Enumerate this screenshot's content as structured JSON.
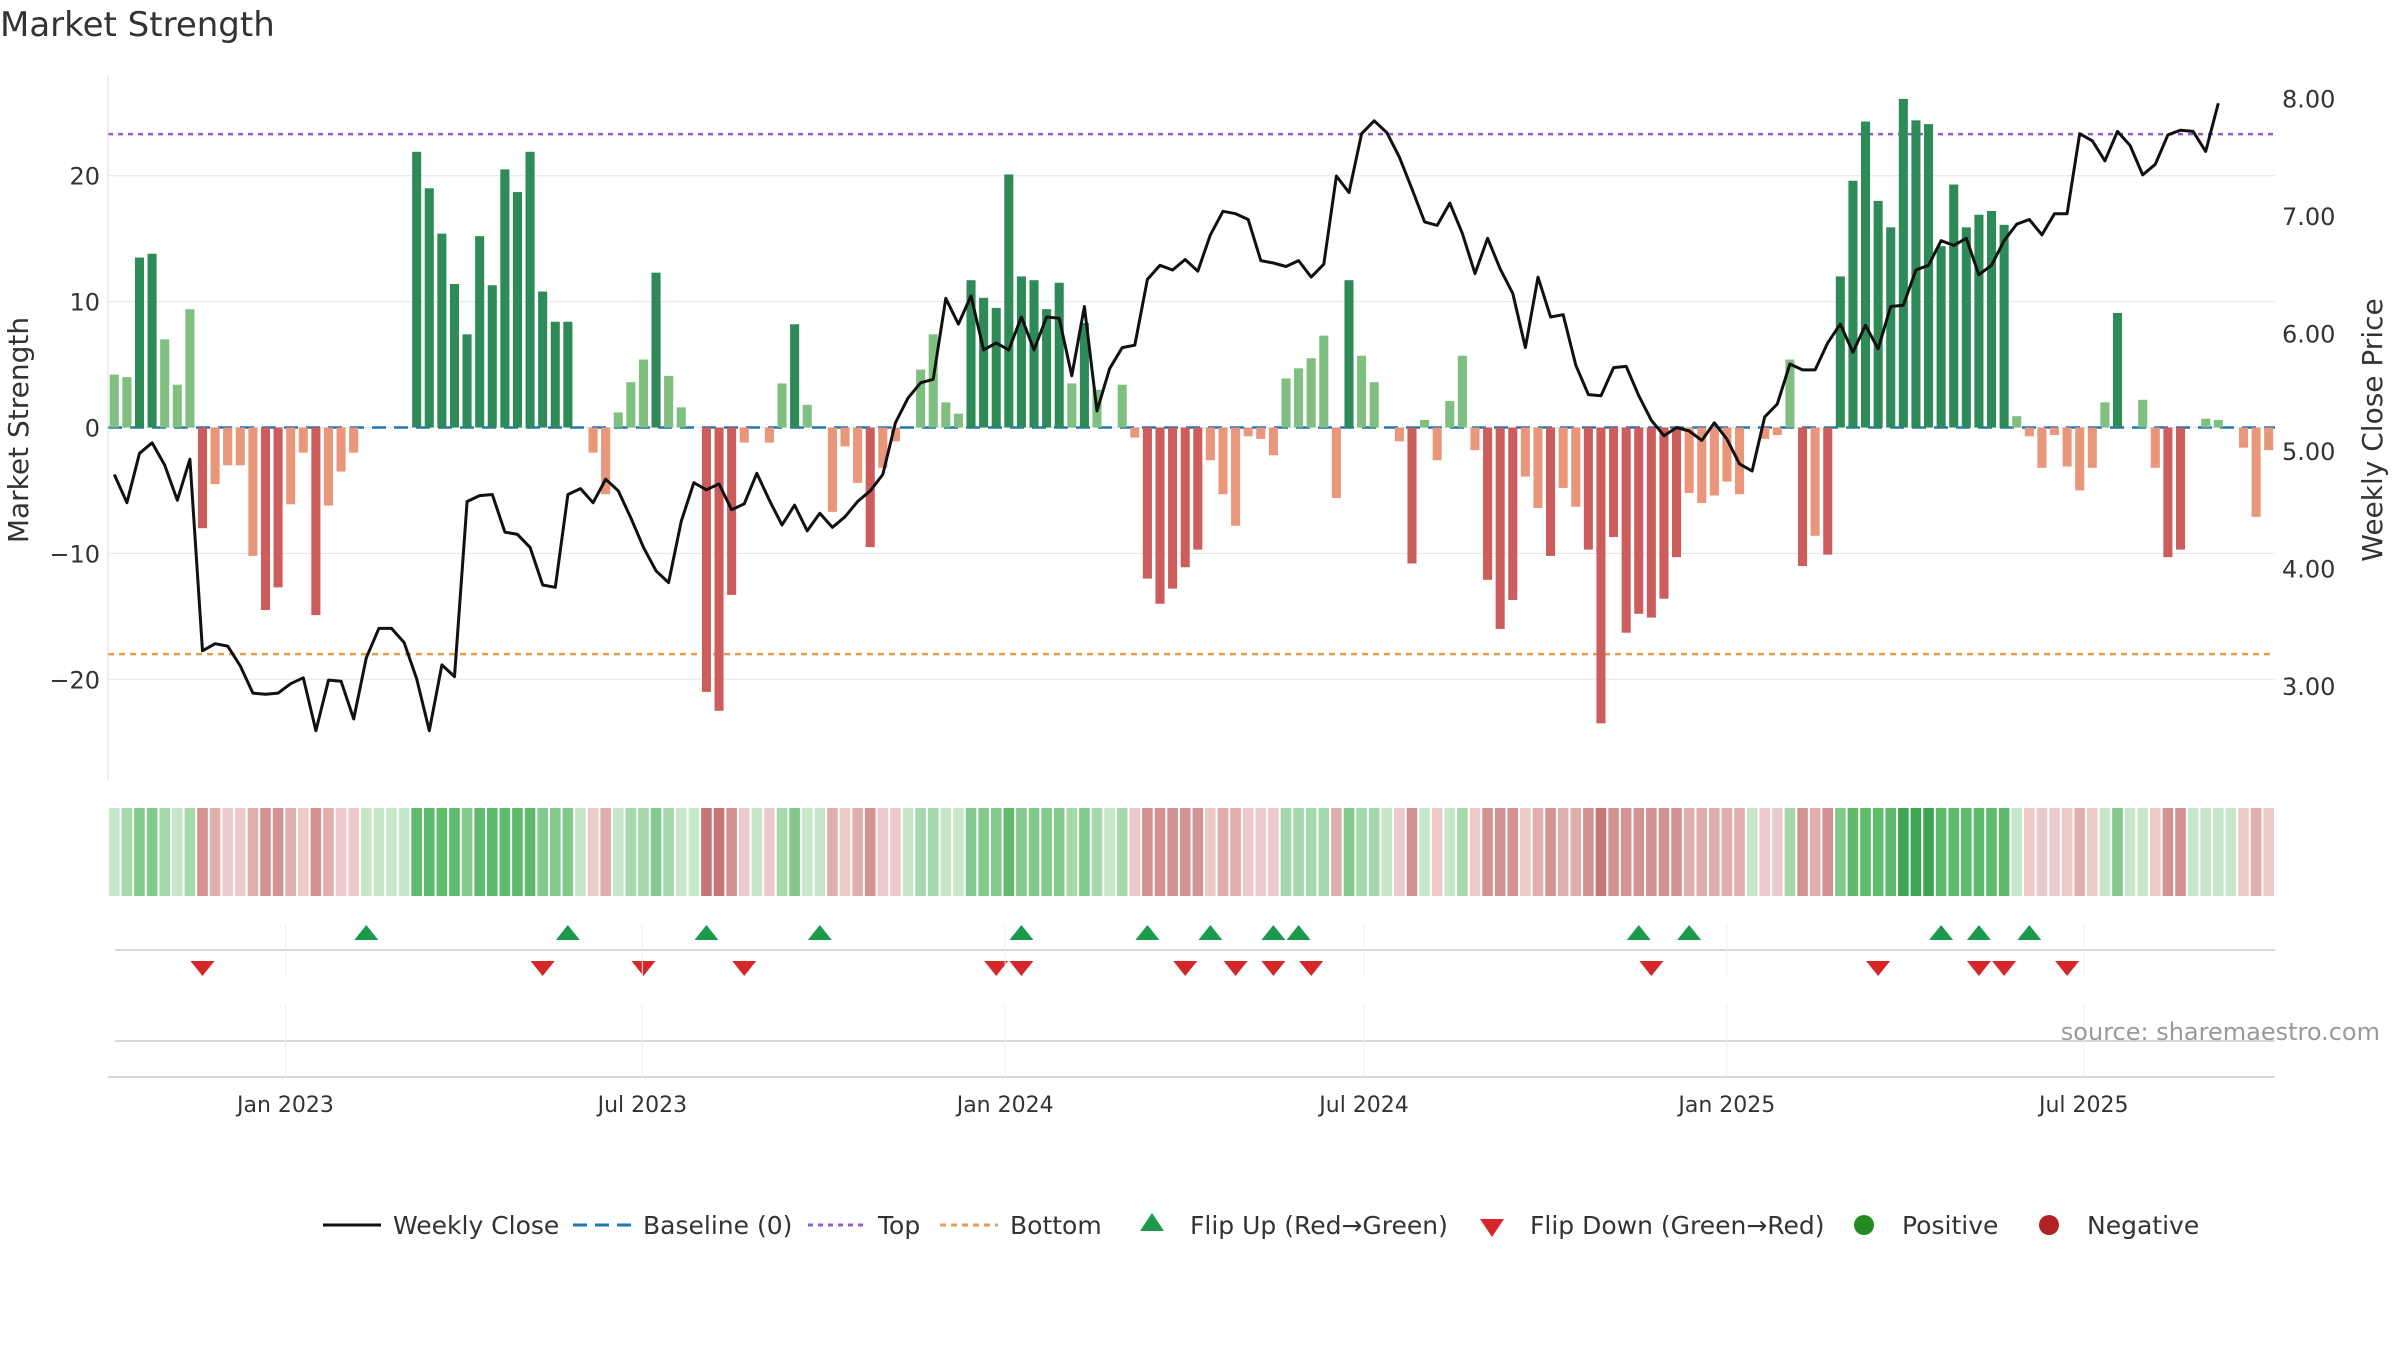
{
  "title": "Market Strength",
  "source_note": "source: sharemaestro.com",
  "colors": {
    "pos_strong": "#2e8b57",
    "pos_light": "#7fbf7f",
    "neg_strong": "#cd5c5c",
    "neg_light": "#e9967a",
    "close_line": "#111111",
    "baseline": "#1f77b4",
    "top_line": "#9b59d0",
    "bottom_line": "#e0a050",
    "flip_up": "#1a9a4a",
    "flip_down": "#d62728",
    "legend_positive": "#228b22",
    "legend_negative": "#b22222"
  },
  "chart_data": {
    "type": "bar",
    "title": "Market Strength",
    "ylabel": "Market Strength",
    "y2label": "Weekly Close Price",
    "ylim": [
      -28,
      28
    ],
    "y2lim": [
      2.2,
      8.2
    ],
    "yticks": [
      20,
      10,
      0,
      -10,
      -20
    ],
    "ytick_labels": [
      "20",
      "10",
      "0",
      "−10",
      "−20"
    ],
    "y2ticks": [
      8.0,
      7.0,
      6.0,
      5.0,
      4.0,
      3.0
    ],
    "y2tick_labels": [
      "8.00",
      "7.00",
      "6.00",
      "5.00",
      "4.00",
      "3.00"
    ],
    "x_start": "2022-10-03",
    "x_end": "2025-10-06",
    "xticks": [
      "2023-01-01",
      "2023-07-01",
      "2024-01-01",
      "2024-07-01",
      "2025-01-01",
      "2025-07-01"
    ],
    "xtick_labels": [
      "Jan 2023",
      "Jul 2023",
      "Jan 2024",
      "Jul 2024",
      "Jan 2025",
      "Jul 2025"
    ],
    "top_level": 23.3,
    "bottom_level": -18,
    "baseline_level": 0,
    "strength": [
      4.2,
      4,
      13.5,
      13.8,
      7,
      3.4,
      9.4,
      -8,
      -4.5,
      -3,
      -3,
      -10.2,
      -14.5,
      -12.7,
      -6.1,
      -2,
      -14.9,
      -6.2,
      -3.5,
      -2,
      0,
      0,
      0,
      0,
      21.9,
      19,
      15.4,
      11.4,
      7.4,
      15.2,
      11.3,
      20.5,
      18.7,
      21.9,
      10.8,
      8.4,
      8.4,
      0,
      -2,
      -5.3,
      1.2,
      3.6,
      5.4,
      12.3,
      4.1,
      1.6,
      0,
      -21,
      -22.5,
      -13.3,
      -1.2,
      0,
      -1.2,
      3.5,
      8.2,
      1.8,
      0,
      -6.7,
      -1.5,
      -4.4,
      -9.5,
      -3.2,
      -1.1,
      0,
      4.6,
      7.4,
      2,
      1.1,
      11.7,
      10.3,
      9.5,
      20.1,
      12,
      11.7,
      9.4,
      11.5,
      3.5,
      8.3,
      3,
      0,
      3.4,
      -0.8,
      -12,
      -14,
      -12.8,
      -11.1,
      -9.7,
      -2.6,
      -5.3,
      -7.8,
      -0.7,
      -0.9,
      -2.2,
      3.9,
      4.7,
      5.5,
      7.3,
      -5.6,
      11.7,
      5.7,
      3.6,
      0,
      -1.1,
      -10.8,
      0.6,
      -2.6,
      2.1,
      5.7,
      -1.8,
      -12.1,
      -16,
      -13.7,
      -3.9,
      -6.4,
      -10.2,
      -4.8,
      -6.3,
      -9.7,
      -23.5,
      -8.7,
      -16.3,
      -14.8,
      -15.1,
      -13.6,
      -10.3,
      -5.2,
      -6,
      -5.4,
      -4.3,
      -5.3,
      0,
      -0.9,
      -0.6,
      5.4,
      -11,
      -8.6,
      -10.1,
      12,
      19.6,
      24.3,
      18,
      15.9,
      26.1,
      24.4,
      24.1,
      14.4,
      19.3,
      15.9,
      16.9,
      17.2,
      16.1,
      0.9,
      -0.7,
      -3.2,
      -0.6,
      -3.1,
      -5,
      -3.2,
      2,
      9.1,
      0,
      2.2,
      -3.2,
      -10.3,
      -9.7,
      0,
      0.7,
      0.6,
      0,
      -1.6,
      -7.1,
      -1.8
    ],
    "close": [
      4.8,
      4.56,
      4.98,
      5.07,
      4.88,
      4.58,
      4.93,
      3.3,
      3.36,
      3.34,
      3.17,
      2.94,
      2.93,
      2.94,
      3.02,
      3.07,
      2.62,
      3.05,
      3.04,
      2.72,
      3.24,
      3.49,
      3.49,
      3.37,
      3.06,
      2.62,
      3.18,
      3.08,
      4.57,
      4.62,
      4.63,
      4.31,
      4.29,
      4.18,
      3.86,
      3.84,
      4.63,
      4.68,
      4.56,
      4.76,
      4.66,
      4.43,
      4.18,
      3.98,
      3.88,
      4.4,
      4.73,
      4.67,
      4.72,
      4.5,
      4.55,
      4.81,
      4.58,
      4.37,
      4.54,
      4.32,
      4.47,
      4.35,
      4.44,
      4.57,
      4.66,
      4.8,
      5.24,
      5.45,
      5.58,
      5.61,
      6.3,
      6.08,
      6.32,
      5.86,
      5.92,
      5.86,
      6.14,
      5.86,
      6.14,
      6.13,
      5.64,
      6.23,
      5.34,
      5.7,
      5.88,
      5.9,
      6.46,
      6.58,
      6.54,
      6.63,
      6.53,
      6.84,
      7.04,
      7.02,
      6.97,
      6.62,
      6.6,
      6.57,
      6.62,
      6.48,
      6.59,
      7.34,
      7.2,
      7.7,
      7.81,
      7.71,
      7.5,
      7.23,
      6.95,
      6.92,
      7.11,
      6.85,
      6.51,
      6.81,
      6.55,
      6.34,
      5.88,
      6.48,
      6.14,
      6.16,
      5.73,
      5.48,
      5.47,
      5.71,
      5.72,
      5.47,
      5.26,
      5.13,
      5.2,
      5.17,
      5.09,
      5.24,
      5.1,
      4.89,
      4.83,
      5.29,
      5.4,
      5.74,
      5.69,
      5.69,
      5.92,
      6.08,
      5.84,
      6.07,
      5.87,
      6.23,
      6.24,
      6.54,
      6.58,
      6.79,
      6.75,
      6.81,
      6.5,
      6.58,
      6.79,
      6.93,
      6.97,
      6.84,
      7.02,
      7.02,
      7.7,
      7.64,
      7.47,
      7.72,
      7.6,
      7.35,
      7.44,
      7.69,
      7.73,
      7.72,
      7.55,
      7.96
    ],
    "heat_levels": [
      1,
      2,
      3,
      3,
      2,
      1,
      2,
      3,
      2,
      1,
      1,
      2,
      3,
      3,
      2,
      1,
      3,
      2,
      1,
      1,
      0,
      0,
      0,
      0,
      4,
      4,
      4,
      4,
      3,
      4,
      4,
      4,
      4,
      4,
      3,
      3,
      3,
      1,
      1,
      2,
      1,
      2,
      2,
      3,
      2,
      1,
      0,
      4,
      4,
      3,
      1,
      0,
      1,
      2,
      3,
      1,
      0,
      2,
      1,
      2,
      3,
      1,
      1,
      0,
      2,
      2,
      1,
      1,
      3,
      3,
      3,
      4,
      3,
      3,
      3,
      3,
      2,
      3,
      2,
      0,
      2,
      1,
      3,
      3,
      3,
      3,
      3,
      1,
      2,
      2,
      1,
      1,
      1,
      2,
      2,
      2,
      2,
      2,
      3,
      2,
      2,
      0,
      1,
      3,
      1,
      1,
      1,
      2,
      1,
      3,
      3,
      3,
      1,
      2,
      3,
      2,
      2,
      3,
      4,
      3,
      3,
      3,
      3,
      3,
      3,
      2,
      2,
      2,
      2,
      2,
      0,
      1,
      1,
      2,
      3,
      2,
      3,
      3,
      4,
      4,
      4,
      4,
      5,
      5,
      5,
      4,
      4,
      4,
      4,
      4,
      4,
      1,
      1,
      1,
      1,
      1,
      2,
      1,
      1,
      3,
      0,
      1,
      1,
      3,
      3,
      0,
      1,
      1,
      0,
      1,
      2,
      1
    ],
    "flip_up_indices": [
      20,
      36,
      47,
      56,
      72,
      82,
      87,
      92,
      94,
      121,
      125,
      145,
      148,
      152
    ],
    "flip_down_indices": [
      7,
      34,
      42,
      50,
      70,
      72,
      85,
      89,
      92,
      95,
      122,
      140,
      148,
      150,
      155
    ],
    "series": [
      {
        "name": "Weekly Close"
      },
      {
        "name": "Baseline (0)"
      },
      {
        "name": "Top"
      },
      {
        "name": "Bottom"
      },
      {
        "name": "Flip Up (Red→Green)"
      },
      {
        "name": "Flip Down (Green→Red)"
      },
      {
        "name": "Positive"
      },
      {
        "name": "Negative"
      }
    ],
    "legend_placement": "bottom-center"
  }
}
